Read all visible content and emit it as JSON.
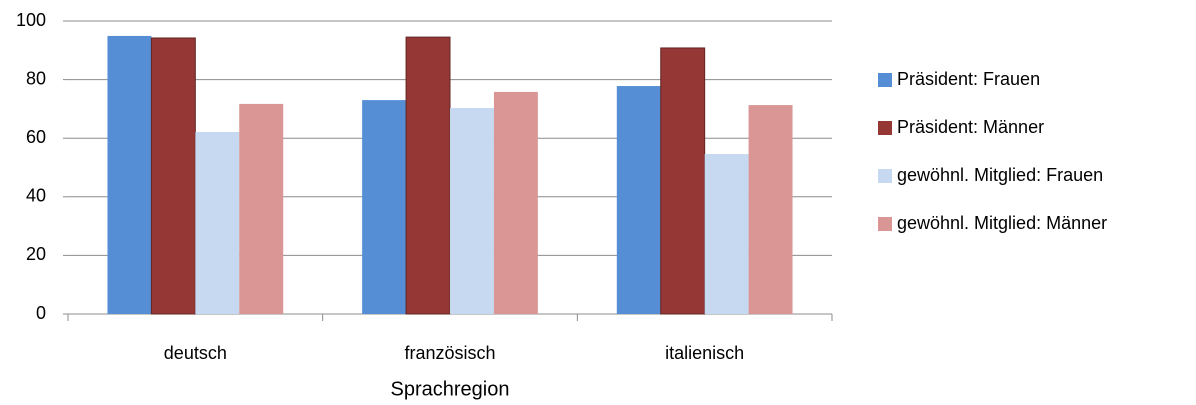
{
  "chart_data": {
    "type": "bar",
    "x_label": "Sprachregion",
    "categories": [
      "deutsch",
      "französisch",
      "italienisch"
    ],
    "series": [
      {
        "name": "Präsident: Frauen",
        "color": "#558ed5",
        "values": [
          94.9,
          73.0,
          77.8
        ]
      },
      {
        "name": "Präsident: Männer",
        "color": "#953735",
        "values": [
          94.2,
          94.5,
          90.8
        ]
      },
      {
        "name": "gewöhnl. Mitglied: Frauen",
        "color": "#c6d9f1",
        "values": [
          62.1,
          70.3,
          54.6
        ]
      },
      {
        "name": "gewöhnl. Mitglied: Männer",
        "color": "#d99694",
        "values": [
          71.7,
          75.8,
          71.3
        ]
      }
    ],
    "ylim": [
      0,
      100
    ],
    "yticks": [
      0,
      20,
      40,
      60,
      80,
      100
    ],
    "grid": true,
    "legend": "right"
  }
}
